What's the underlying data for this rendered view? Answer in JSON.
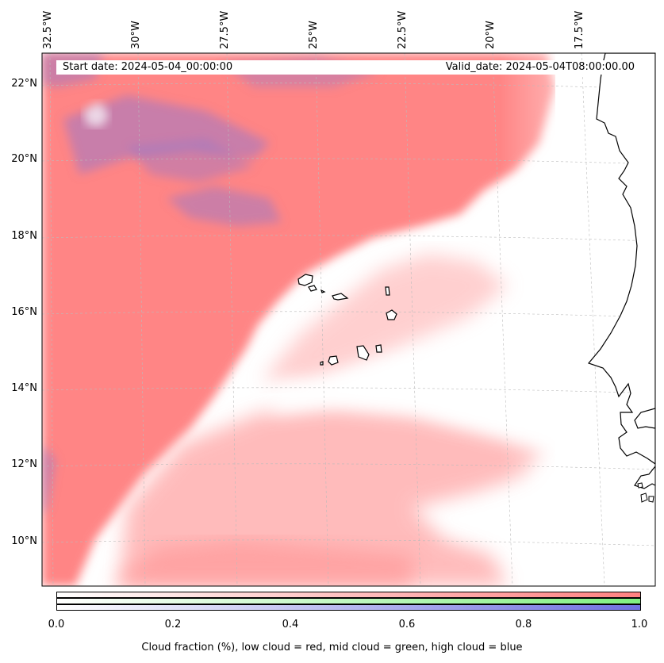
{
  "map": {
    "start_date": "Start date: 2024-05-04_00:00:00",
    "valid_date": "Valid_date: 2024-05-04T08:00:00.00",
    "lon_labels": [
      "32.5°W",
      "30°W",
      "27.5°W",
      "25°W",
      "22.5°W",
      "20°W",
      "17.5°W"
    ],
    "lat_labels": [
      "22°N",
      "20°N",
      "18°N",
      "16°N",
      "14°N",
      "12°N",
      "10°N"
    ],
    "colors": {
      "low_cloud": "#ff8080",
      "mid_cloud": "#80ff80",
      "high_cloud": "#8080e0",
      "gridline": "#bbbbbb",
      "coastline": "#000000"
    }
  },
  "colorbar": {
    "ticks": [
      "0.0",
      "0.2",
      "0.4",
      "0.6",
      "0.8",
      "1.0"
    ],
    "range": [
      0.0,
      1.0
    ],
    "label": "Cloud fraction (%), low cloud = red, mid cloud = green, high cloud = blue"
  }
}
